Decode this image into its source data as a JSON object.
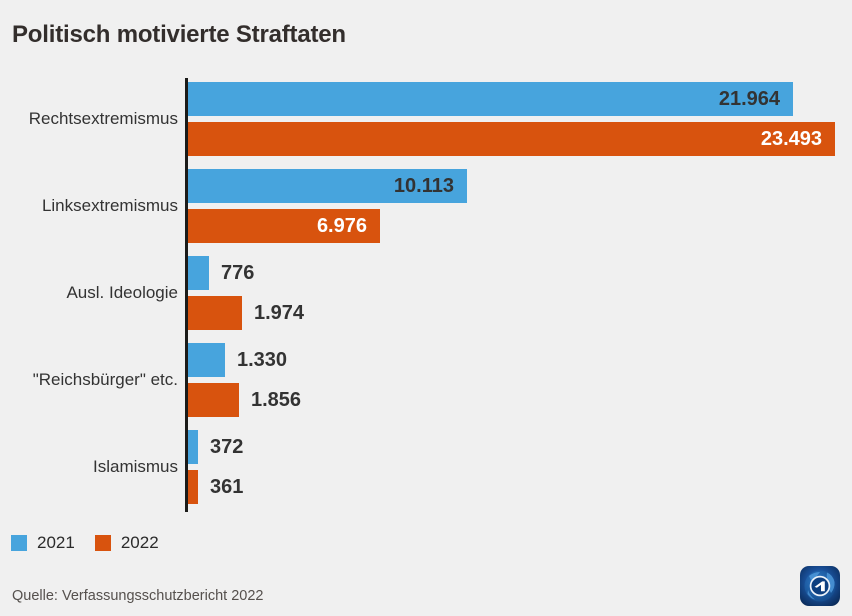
{
  "title": "Politisch motivierte Straftaten",
  "source": "Quelle: Verfassungsschutzbericht 2022",
  "colors": {
    "background": "#F0F0F0",
    "series_2021": "#47A4DD",
    "series_2022": "#D8530E",
    "axis": "#1B1B19",
    "text_dark": "#333333",
    "value_on_orange": "#FFFFFF",
    "source_text": "#55504D"
  },
  "legend": [
    {
      "label": "2021",
      "color": "#47A4DD"
    },
    {
      "label": "2022",
      "color": "#D8530E"
    }
  ],
  "logo": {
    "name": "ard-tagesschau-globe-logo"
  },
  "chart_data": {
    "type": "bar",
    "orientation": "horizontal",
    "title": "Politisch motivierte Straftaten",
    "xlabel": "",
    "ylabel": "",
    "xlim": [
      0,
      23493
    ],
    "grid": false,
    "legend_position": "bottom-left",
    "categories": [
      "Rechtsextremismus",
      "Linksextremismus",
      "Ausl. Ideologie",
      "\"Reichsbürger\" etc.",
      "Islamismus"
    ],
    "series": [
      {
        "name": "2021",
        "color": "#47A4DD",
        "values": [
          21964,
          10113,
          776,
          1330,
          372
        ],
        "labels": [
          "21.964",
          "10.113",
          "776",
          "1.330",
          "372"
        ]
      },
      {
        "name": "2022",
        "color": "#D8530E",
        "values": [
          23493,
          6976,
          1974,
          1856,
          361
        ],
        "labels": [
          "23.493",
          "6.976",
          "1.974",
          "1.856",
          "361"
        ]
      }
    ]
  }
}
